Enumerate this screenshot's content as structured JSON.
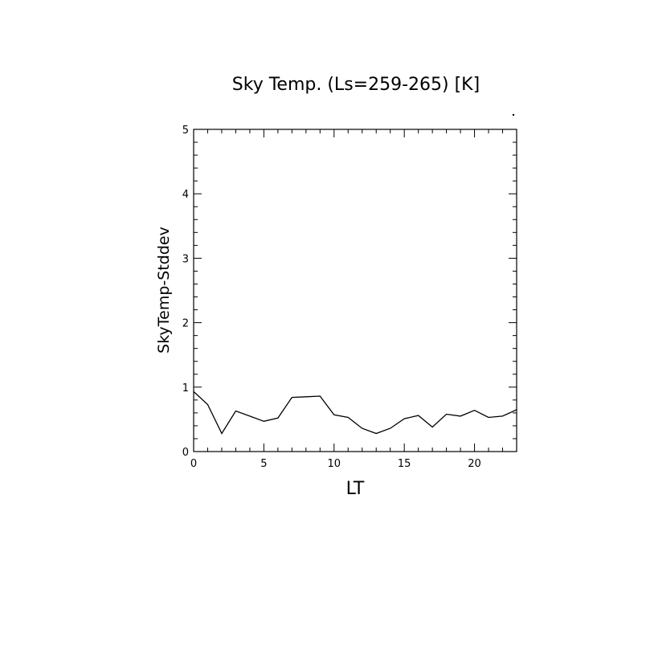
{
  "chart_data": {
    "type": "line",
    "title": "Sky Temp. (Ls=259-265) [K]",
    "xlabel": "LT",
    "ylabel": "SkyTemp-Stddev",
    "xlim": [
      0,
      23
    ],
    "ylim": [
      0,
      5
    ],
    "x_ticks": [
      0,
      5,
      10,
      15,
      20
    ],
    "y_ticks": [
      0,
      1,
      2,
      3,
      4,
      5
    ],
    "x_minor_step": 1,
    "y_minor_step": 0.2,
    "grid": false,
    "legend": "none",
    "colors": {
      "line": "#000000",
      "axes": "#000000",
      "background": "#ffffff"
    },
    "x": [
      0,
      1,
      2,
      3,
      4,
      5,
      6,
      7,
      8,
      9,
      10,
      11,
      12,
      13,
      14,
      15,
      16,
      17,
      18,
      19,
      20,
      21,
      22,
      23
    ],
    "series": [
      {
        "values": [
          0.93,
          0.73,
          0.28,
          0.63,
          0.55,
          0.47,
          0.52,
          0.84,
          0.85,
          0.86,
          0.57,
          0.53,
          0.36,
          0.28,
          0.36,
          0.51,
          0.56,
          0.38,
          0.58,
          0.55,
          0.64,
          0.53,
          0.55,
          0.65
        ]
      }
    ]
  }
}
